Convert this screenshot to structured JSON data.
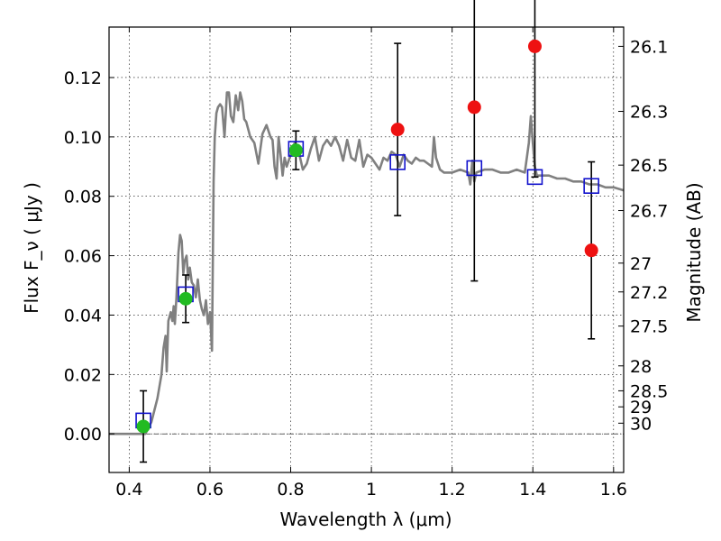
{
  "chart_data": {
    "type": "line",
    "xlabel": "Wavelength  λ (μm)",
    "ylabel": "Flux  F_ν  ( μJy )",
    "ylabel2": "Magnitude (AB)",
    "xlim": [
      0.35,
      1.625
    ],
    "ylim": [
      -0.013,
      0.137
    ],
    "grid": true,
    "x_ticks": [
      0.4,
      0.6,
      0.8,
      1.0,
      1.2,
      1.4,
      1.6
    ],
    "x_tick_labels": [
      "0.4",
      "0.6",
      "0.8",
      "1",
      "1.2",
      "1.4",
      "1.6"
    ],
    "y_ticks": [
      0.0,
      0.02,
      0.04,
      0.06,
      0.08,
      0.1,
      0.12
    ],
    "y_tick_labels": [
      "0.00",
      "0.02",
      "0.04",
      "0.06",
      "0.08",
      "0.10",
      "0.12"
    ],
    "mag_ticks": [
      {
        "label": "26.1",
        "flux": 0.1305
      },
      {
        "label": "26.3",
        "flux": 0.1086
      },
      {
        "label": "26.5",
        "flux": 0.0905
      },
      {
        "label": "26.7",
        "flux": 0.0752
      },
      {
        "label": "27",
        "flux": 0.0575
      },
      {
        "label": "27.2",
        "flux": 0.0478
      },
      {
        "label": "27.5",
        "flux": 0.0363
      },
      {
        "label": "28",
        "flux": 0.0229
      },
      {
        "label": "28.5",
        "flux": 0.0145
      },
      {
        "label": "29",
        "flux": 0.0091
      },
      {
        "label": "30",
        "flux": 0.0036
      }
    ],
    "series": [
      {
        "kind": "model-spectrum",
        "color": "#808080",
        "points": [
          [
            0.35,
            0.0
          ],
          [
            0.44,
            0.0
          ],
          [
            0.455,
            0.004
          ],
          [
            0.47,
            0.012
          ],
          [
            0.48,
            0.02
          ],
          [
            0.485,
            0.029
          ],
          [
            0.49,
            0.033
          ],
          [
            0.493,
            0.021
          ],
          [
            0.497,
            0.038
          ],
          [
            0.503,
            0.041
          ],
          [
            0.507,
            0.038
          ],
          [
            0.51,
            0.043
          ],
          [
            0.513,
            0.037
          ],
          [
            0.517,
            0.046
          ],
          [
            0.522,
            0.061
          ],
          [
            0.526,
            0.067
          ],
          [
            0.53,
            0.065
          ],
          [
            0.534,
            0.054
          ],
          [
            0.537,
            0.058
          ],
          [
            0.542,
            0.06
          ],
          [
            0.546,
            0.052
          ],
          [
            0.55,
            0.056
          ],
          [
            0.555,
            0.051
          ],
          [
            0.56,
            0.05
          ],
          [
            0.565,
            0.046
          ],
          [
            0.57,
            0.052
          ],
          [
            0.575,
            0.045
          ],
          [
            0.58,
            0.042
          ],
          [
            0.585,
            0.04
          ],
          [
            0.59,
            0.045
          ],
          [
            0.595,
            0.037
          ],
          [
            0.6,
            0.041
          ],
          [
            0.605,
            0.028
          ],
          [
            0.609,
            0.085
          ],
          [
            0.612,
            0.1
          ],
          [
            0.616,
            0.108
          ],
          [
            0.62,
            0.11
          ],
          [
            0.625,
            0.111
          ],
          [
            0.63,
            0.11
          ],
          [
            0.636,
            0.1
          ],
          [
            0.642,
            0.115
          ],
          [
            0.647,
            0.115
          ],
          [
            0.652,
            0.107
          ],
          [
            0.658,
            0.105
          ],
          [
            0.664,
            0.114
          ],
          [
            0.67,
            0.109
          ],
          [
            0.675,
            0.115
          ],
          [
            0.68,
            0.112
          ],
          [
            0.685,
            0.106
          ],
          [
            0.69,
            0.105
          ],
          [
            0.7,
            0.1
          ],
          [
            0.71,
            0.098
          ],
          [
            0.72,
            0.091
          ],
          [
            0.73,
            0.101
          ],
          [
            0.74,
            0.104
          ],
          [
            0.75,
            0.1
          ],
          [
            0.755,
            0.099
          ],
          [
            0.76,
            0.09
          ],
          [
            0.765,
            0.086
          ],
          [
            0.77,
            0.1
          ],
          [
            0.775,
            0.094
          ],
          [
            0.78,
            0.087
          ],
          [
            0.785,
            0.093
          ],
          [
            0.79,
            0.09
          ],
          [
            0.8,
            0.094
          ],
          [
            0.81,
            0.098
          ],
          [
            0.82,
            0.095
          ],
          [
            0.83,
            0.089
          ],
          [
            0.84,
            0.091
          ],
          [
            0.85,
            0.096
          ],
          [
            0.86,
            0.1
          ],
          [
            0.87,
            0.092
          ],
          [
            0.88,
            0.097
          ],
          [
            0.89,
            0.099
          ],
          [
            0.9,
            0.097
          ],
          [
            0.91,
            0.1
          ],
          [
            0.92,
            0.097
          ],
          [
            0.93,
            0.092
          ],
          [
            0.94,
            0.099
          ],
          [
            0.95,
            0.093
          ],
          [
            0.96,
            0.092
          ],
          [
            0.97,
            0.099
          ],
          [
            0.98,
            0.09
          ],
          [
            0.99,
            0.094
          ],
          [
            1.0,
            0.093
          ],
          [
            1.01,
            0.091
          ],
          [
            1.02,
            0.089
          ],
          [
            1.03,
            0.093
          ],
          [
            1.04,
            0.092
          ],
          [
            1.05,
            0.095
          ],
          [
            1.06,
            0.094
          ],
          [
            1.07,
            0.09
          ],
          [
            1.08,
            0.094
          ],
          [
            1.09,
            0.092
          ],
          [
            1.1,
            0.091
          ],
          [
            1.11,
            0.093
          ],
          [
            1.12,
            0.092
          ],
          [
            1.13,
            0.092
          ],
          [
            1.14,
            0.091
          ],
          [
            1.15,
            0.09
          ],
          [
            1.155,
            0.1
          ],
          [
            1.16,
            0.093
          ],
          [
            1.17,
            0.089
          ],
          [
            1.18,
            0.088
          ],
          [
            1.2,
            0.088
          ],
          [
            1.22,
            0.089
          ],
          [
            1.24,
            0.088
          ],
          [
            1.245,
            0.084
          ],
          [
            1.25,
            0.092
          ],
          [
            1.255,
            0.085
          ],
          [
            1.26,
            0.088
          ],
          [
            1.28,
            0.089
          ],
          [
            1.3,
            0.089
          ],
          [
            1.32,
            0.088
          ],
          [
            1.34,
            0.088
          ],
          [
            1.36,
            0.089
          ],
          [
            1.38,
            0.088
          ],
          [
            1.39,
            0.098
          ],
          [
            1.395,
            0.107
          ],
          [
            1.4,
            0.098
          ],
          [
            1.405,
            0.09
          ],
          [
            1.41,
            0.087
          ],
          [
            1.44,
            0.087
          ],
          [
            1.46,
            0.086
          ],
          [
            1.48,
            0.086
          ],
          [
            1.5,
            0.085
          ],
          [
            1.52,
            0.085
          ],
          [
            1.54,
            0.084
          ],
          [
            1.56,
            0.084
          ],
          [
            1.58,
            0.083
          ],
          [
            1.6,
            0.083
          ],
          [
            1.625,
            0.082
          ]
        ]
      }
    ],
    "model_fluxes": [
      {
        "x": 0.435,
        "y": 0.0045
      },
      {
        "x": 0.54,
        "y": 0.047
      },
      {
        "x": 0.813,
        "y": 0.096
      },
      {
        "x": 1.065,
        "y": 0.0915
      },
      {
        "x": 1.255,
        "y": 0.0895
      },
      {
        "x": 1.405,
        "y": 0.0865
      },
      {
        "x": 1.545,
        "y": 0.0835
      }
    ],
    "detections": [
      {
        "x": 0.435,
        "y": 0.0025,
        "err": 0.012
      },
      {
        "x": 0.54,
        "y": 0.0455,
        "err": 0.008
      },
      {
        "x": 0.813,
        "y": 0.0955,
        "err": 0.0065
      }
    ],
    "upper_limits_points": [
      {
        "x": 1.065,
        "y": 0.1025,
        "err": 0.029
      },
      {
        "x": 1.255,
        "y": 0.11,
        "err": 0.0585
      },
      {
        "x": 1.405,
        "y": 0.1305,
        "err": 0.044
      },
      {
        "x": 1.545,
        "y": 0.0618,
        "err": 0.0298
      }
    ],
    "colors": {
      "detection": "#22bb22",
      "nondetection": "#ee1111",
      "model_box": "#1111cc",
      "spectrum": "#808080"
    }
  }
}
